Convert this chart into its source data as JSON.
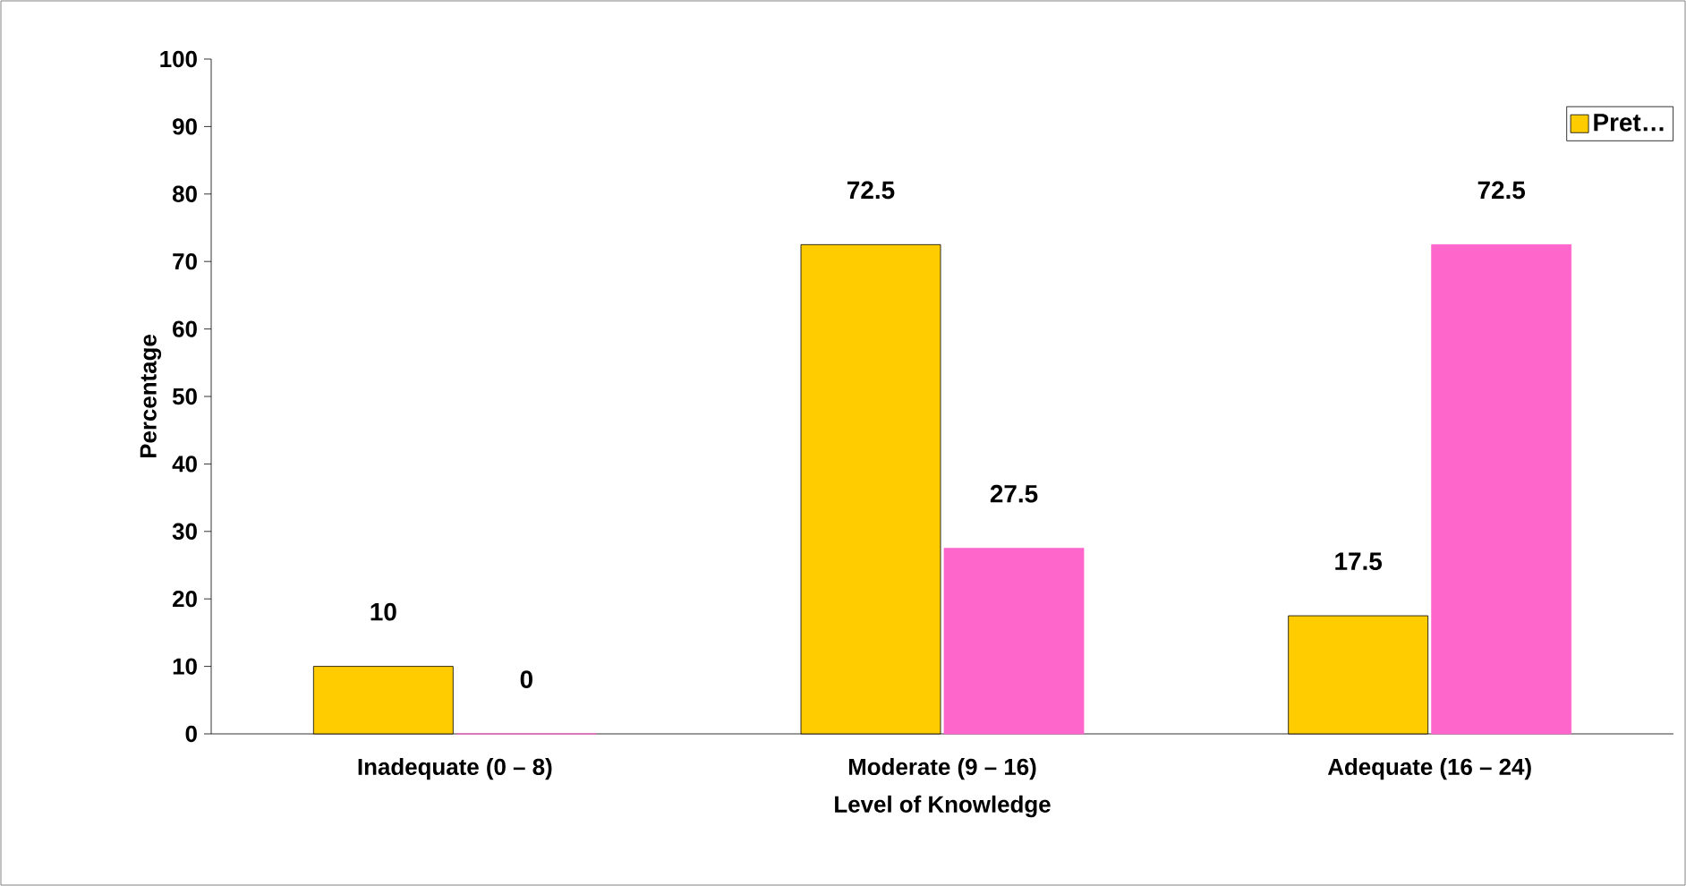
{
  "chart_data": {
    "type": "bar",
    "xlabel": "Level of Knowledge",
    "ylabel": "Percentage",
    "categories": [
      "Inadequate (0 – 8)",
      "Moderate (9 – 16)",
      "Adequate (16 – 24)"
    ],
    "series": [
      {
        "name": "Pret…",
        "color": "#ffcc00",
        "values": [
          10,
          72.5,
          17.5
        ]
      },
      {
        "color": "#ff66cc",
        "values": [
          0,
          27.5,
          72.5
        ]
      }
    ],
    "ylim": [
      0,
      100
    ],
    "yticks": [
      0,
      10,
      20,
      30,
      40,
      50,
      60,
      70,
      80,
      90,
      100
    ],
    "data_labels": true,
    "legend": "top right",
    "grid": false
  }
}
